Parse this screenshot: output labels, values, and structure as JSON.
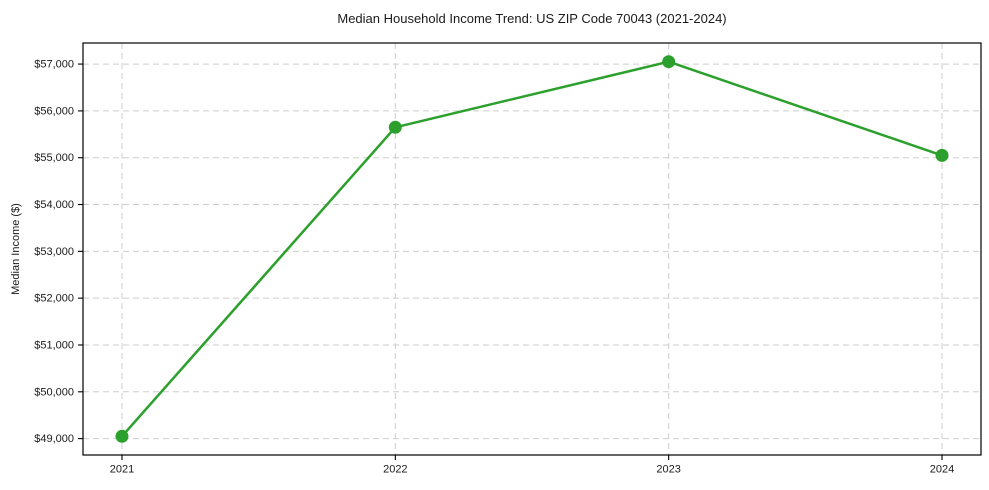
{
  "figure": {
    "background": "#ffffff"
  },
  "chart_data": {
    "type": "line",
    "title": "Median Household Income Trend: US ZIP Code 70043 (2021-2024)",
    "xlabel": "",
    "ylabel": "Median Income ($)",
    "categories": [
      "2021",
      "2022",
      "2023",
      "2024"
    ],
    "values": [
      49050,
      55650,
      57050,
      55050
    ],
    "ylim": [
      48650,
      57450
    ],
    "yticks": [
      49000,
      50000,
      51000,
      52000,
      53000,
      54000,
      55000,
      56000,
      57000
    ],
    "ytick_labels": [
      "$49,000",
      "$50,000",
      "$51,000",
      "$52,000",
      "$53,000",
      "$54,000",
      "$55,000",
      "$56,000",
      "$57,000"
    ],
    "legend": "none",
    "grid": "both, dashed",
    "colors": {
      "line": "#2ca02c",
      "marker": "#2ca02c",
      "grid": "#cdcdcd",
      "spine": "#000000",
      "text": "#1a1a1a",
      "background": "#ffffff"
    }
  }
}
